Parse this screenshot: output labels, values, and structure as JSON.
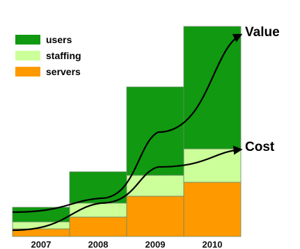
{
  "chart_data": {
    "type": "bar",
    "stacked": true,
    "categories": [
      "2007",
      "2008",
      "2009",
      "2010"
    ],
    "series": [
      {
        "name": "servers",
        "color": "#ff9900",
        "values": [
          11,
          28,
          58,
          78
        ]
      },
      {
        "name": "staffing",
        "color": "#ccff99",
        "values": [
          10,
          20,
          30,
          48
        ]
      },
      {
        "name": "users",
        "color": "#119911",
        "values": [
          21,
          45,
          127,
          176
        ]
      }
    ],
    "legend": {
      "placement": "top-left",
      "order": [
        "users",
        "staffing",
        "servers"
      ]
    },
    "ylim": [
      0,
      310
    ],
    "grid": false,
    "curves": [
      {
        "label": "Value",
        "values": [
          35,
          55,
          150,
          290
        ]
      },
      {
        "label": "Cost",
        "values": [
          9,
          48,
          100,
          125
        ]
      }
    ]
  },
  "colors": {
    "curve": "#000000",
    "bar_outline": "#6a8a6a"
  }
}
